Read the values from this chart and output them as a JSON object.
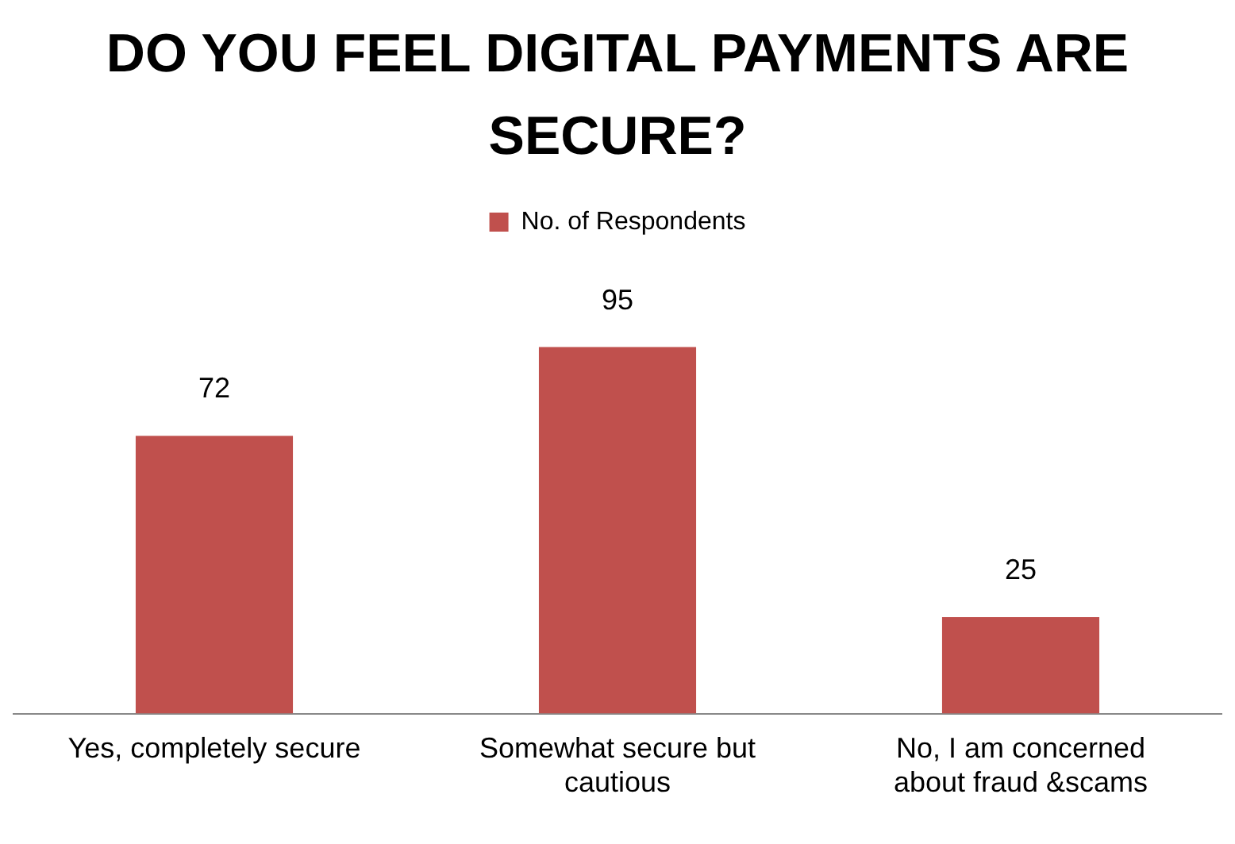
{
  "chart_data": {
    "type": "bar",
    "title": "DO YOU FEEL DIGITAL PAYMENTS ARE SECURE?",
    "categories": [
      "Yes, completely secure",
      "Somewhat secure but cautious",
      "No, I am concerned about fraud &scams"
    ],
    "series": [
      {
        "name": "No. of Respondents",
        "color": "#c0504d",
        "values": [
          72,
          95,
          25
        ]
      }
    ],
    "data_labels": true,
    "legend": "top",
    "grid": false,
    "tick_labels": "x"
  }
}
